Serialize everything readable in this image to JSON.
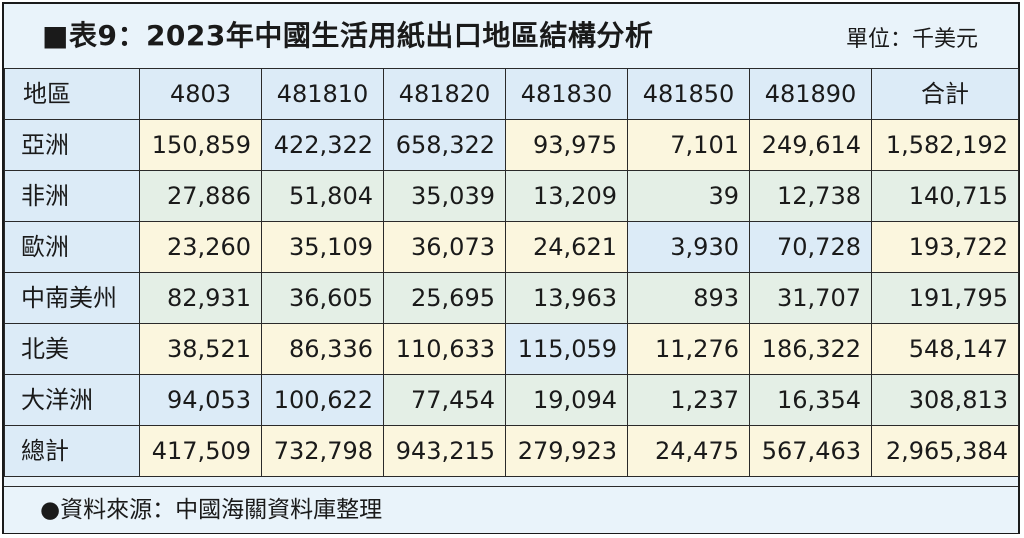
{
  "title": "■表9：2023年中國生活用紙出口地區結構分析",
  "unit": "單位：千美元",
  "columns": [
    "地區",
    "4803",
    "481810",
    "481820",
    "481830",
    "481850",
    "481890",
    "合計"
  ],
  "rows": [
    {
      "region": "亞洲",
      "values": [
        "150,859",
        "422,322",
        "658,322",
        "93,975",
        "7,101",
        "249,614",
        "1,582,192"
      ]
    },
    {
      "region": "非洲",
      "values": [
        "27,886",
        "51,804",
        "35,039",
        "13,209",
        "39",
        "12,738",
        "140,715"
      ]
    },
    {
      "region": "歐洲",
      "values": [
        "23,260",
        "35,109",
        "36,073",
        "24,621",
        "3,930",
        "70,728",
        "193,722"
      ]
    },
    {
      "region": "中南美州",
      "values": [
        "82,931",
        "36,605",
        "25,695",
        "13,963",
        "893",
        "31,707",
        "191,795"
      ]
    },
    {
      "region": "北美",
      "values": [
        "38,521",
        "86,336",
        "110,633",
        "115,059",
        "11,276",
        "186,322",
        "548,147"
      ]
    },
    {
      "region": "大洋洲",
      "values": [
        "94,053",
        "100,622",
        "77,454",
        "19,094",
        "1,237",
        "16,354",
        "308,813"
      ]
    },
    {
      "region": "總計",
      "values": [
        "417,509",
        "732,798",
        "943,215",
        "279,923",
        "24,475",
        "567,463",
        "2,965,384"
      ]
    }
  ],
  "source": "●資料來源：中國海關資料庫整理",
  "colors": {
    "header_bg": "#dcebf7",
    "cell_yellow": "#fbf6de",
    "cell_blue": "#dcebf7",
    "cell_green": "#e4efe6",
    "frame_bg": "#e9f3fa"
  }
}
